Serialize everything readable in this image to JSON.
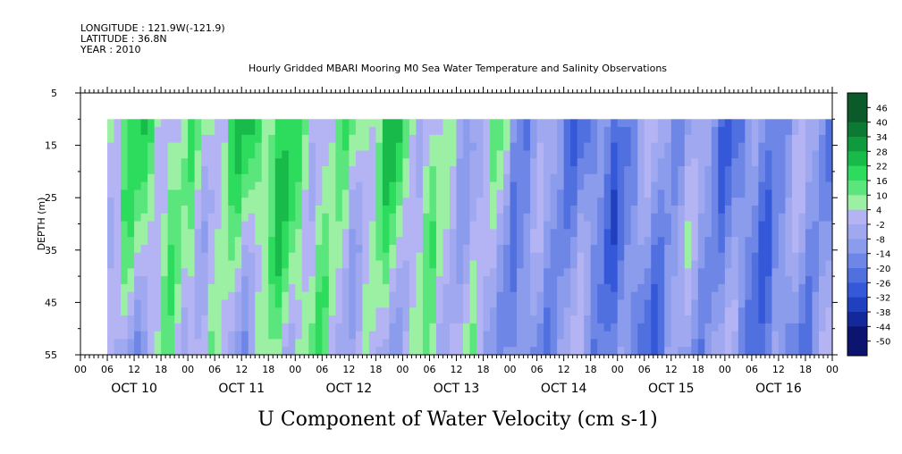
{
  "header": {
    "longitude": "LONGITUDE : 121.9W(-121.9)",
    "latitude": "LATITUDE : 36.8N",
    "year": "YEAR : 2010",
    "title": "Hourly Gridded MBARI Mooring M0 Sea Water Temperature and Salinity Observations"
  },
  "chart_data": {
    "type": "heatmap",
    "title": "Hourly Gridded MBARI Mooring M0 Sea Water Temperature and Salinity Observations",
    "xlabel": "",
    "ylabel": "DEPTH (m)",
    "variable_label": "U Component of Water Velocity (cm s-1)",
    "y_axis": {
      "range": [
        5,
        55
      ],
      "inverted": true,
      "ticks": [
        "5",
        "15",
        "25",
        "35",
        "45",
        "55"
      ]
    },
    "x_axis": {
      "range_hours": [
        0,
        168
      ],
      "hour_ticks": [
        "00",
        "06",
        "12",
        "18",
        "00",
        "06",
        "12",
        "18",
        "00",
        "06",
        "12",
        "18",
        "00",
        "06",
        "12",
        "18",
        "00",
        "06",
        "12",
        "18",
        "00",
        "06",
        "12",
        "18",
        "00",
        "06",
        "12",
        "18",
        "00"
      ],
      "day_labels": [
        "OCT 10",
        "OCT 11",
        "OCT 12",
        "OCT 13",
        "OCT 14",
        "OCT 15",
        "OCT 16"
      ]
    },
    "data_extent": {
      "x_hours": [
        6,
        168
      ],
      "depth_m": [
        10,
        55
      ]
    },
    "colorbar": {
      "labels": [
        "46",
        "40",
        "34",
        "28",
        "22",
        "16",
        "10",
        "4",
        "-2",
        "-8",
        "-14",
        "-20",
        "-26",
        "-32",
        "-38",
        "-44",
        "-50"
      ]
    },
    "day_means": [
      {
        "day": "OCT 10",
        "surface": 10,
        "bottom": -4
      },
      {
        "day": "OCT 11",
        "surface": 14,
        "bottom": 2
      },
      {
        "day": "OCT 12",
        "surface": 12,
        "bottom": 2
      },
      {
        "day": "OCT 13",
        "surface": 4,
        "bottom": -2
      },
      {
        "day": "OCT 14",
        "surface": -16,
        "bottom": -14
      },
      {
        "day": "OCT 15",
        "surface": -12,
        "bottom": -14
      },
      {
        "day": "OCT 16",
        "surface": -14,
        "bottom": -12
      }
    ]
  }
}
